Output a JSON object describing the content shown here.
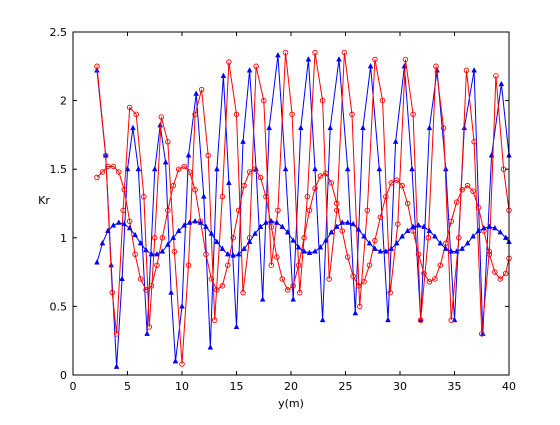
{
  "chart_data": {
    "type": "line",
    "title": "",
    "xlabel": "y(m)",
    "ylabel": "Kr",
    "xlim": [
      0,
      40
    ],
    "ylim": [
      0,
      2.5
    ],
    "xticks": [
      "0",
      "5",
      "10",
      "15",
      "20",
      "25",
      "30",
      "35",
      "40"
    ],
    "yticks": [
      "0",
      "0.5",
      "1",
      "1.5",
      "2",
      "2.5"
    ],
    "grid": false,
    "legend": "none",
    "series": [
      {
        "marker": "triangle",
        "color": "#0000ff",
        "x": [
          2.2,
          3.0,
          3.5,
          4.0,
          4.5,
          5.0,
          5.5,
          6.0,
          6.8,
          7.5,
          8.0,
          8.5,
          9.0,
          9.4,
          10.0,
          10.6,
          11.3,
          12.0,
          12.6,
          13.2,
          13.8,
          14.3,
          15.0,
          15.6,
          16.2,
          16.8,
          17.4,
          18.0,
          18.8,
          19.5,
          20.2,
          20.9,
          21.6,
          22.2,
          22.9,
          23.6,
          24.4,
          25.2,
          25.9,
          26.6,
          27.3,
          28.1,
          28.9,
          29.6,
          30.4,
          31.1,
          31.9,
          32.7,
          33.4,
          34.2,
          35.0,
          35.9,
          36.8,
          37.6,
          38.4,
          39.3,
          40.0
        ],
        "y": [
          2.22,
          1.6,
          0.8,
          0.06,
          0.7,
          1.5,
          1.8,
          1.5,
          0.3,
          1.5,
          1.82,
          1.55,
          0.6,
          0.1,
          0.5,
          1.6,
          2.05,
          1.3,
          0.2,
          1.5,
          2.18,
          1.4,
          0.35,
          1.7,
          2.22,
          1.5,
          0.55,
          1.8,
          2.33,
          1.5,
          0.55,
          1.8,
          2.3,
          1.5,
          0.4,
          1.8,
          2.3,
          1.5,
          0.45,
          1.8,
          2.25,
          1.5,
          0.4,
          1.7,
          2.25,
          1.5,
          0.4,
          1.8,
          2.22,
          1.5,
          0.4,
          1.8,
          2.22,
          0.3,
          1.6,
          2.12,
          1.6
        ]
      },
      {
        "marker": "circle",
        "color": "#ff0000",
        "x": [
          2.2,
          3.0,
          3.6,
          4.0,
          4.6,
          5.2,
          5.8,
          6.5,
          7.0,
          7.5,
          8.1,
          8.7,
          9.3,
          10.0,
          10.6,
          11.2,
          11.8,
          12.4,
          13.0,
          13.7,
          14.3,
          15.0,
          15.6,
          16.2,
          16.8,
          17.5,
          18.2,
          18.8,
          19.5,
          20.1,
          20.8,
          21.5,
          22.2,
          22.9,
          23.5,
          24.2,
          24.9,
          25.6,
          26.3,
          27.0,
          27.7,
          28.4,
          29.1,
          29.8,
          30.5,
          31.2,
          31.9,
          32.6,
          33.3,
          34.0,
          34.7,
          35.4,
          36.1,
          36.8,
          37.5,
          38.2,
          38.8,
          39.5,
          40.0
        ],
        "y": [
          2.25,
          1.6,
          0.6,
          0.3,
          1.2,
          1.95,
          1.9,
          1.3,
          0.35,
          1.0,
          1.88,
          1.7,
          0.9,
          0.08,
          0.8,
          1.9,
          2.08,
          1.6,
          0.4,
          1.3,
          2.28,
          1.9,
          0.6,
          1.0,
          2.25,
          2.0,
          0.8,
          1.2,
          2.35,
          1.9,
          0.6,
          1.3,
          2.35,
          2.0,
          0.7,
          1.2,
          2.35,
          1.9,
          0.5,
          1.2,
          2.3,
          2.0,
          0.6,
          1.1,
          2.3,
          1.9,
          0.4,
          1.0,
          2.25,
          1.8,
          0.4,
          1.0,
          2.22,
          1.7,
          0.3,
          0.9,
          2.18,
          1.5,
          1.2
        ]
      },
      {
        "marker": "circle",
        "color": "#ff0000",
        "x": [
          2.2,
          2.7,
          3.2,
          3.7,
          4.2,
          4.7,
          5.2,
          5.7,
          6.2,
          6.7,
          7.2,
          7.7,
          8.2,
          8.7,
          9.2,
          9.7,
          10.2,
          10.7,
          11.2,
          11.7,
          12.2,
          12.7,
          13.2,
          13.7,
          14.2,
          14.7,
          15.2,
          15.7,
          16.2,
          16.7,
          17.2,
          17.7,
          18.2,
          18.7,
          19.2,
          19.7,
          20.2,
          20.7,
          21.2,
          21.7,
          22.2,
          22.7,
          23.2,
          23.7,
          24.2,
          24.7,
          25.2,
          25.7,
          26.2,
          26.7,
          27.2,
          27.7,
          28.2,
          28.7,
          29.2,
          29.7,
          30.2,
          30.7,
          31.2,
          31.7,
          32.2,
          32.7,
          33.2,
          33.7,
          34.2,
          34.7,
          35.2,
          35.7,
          36.2,
          36.7,
          37.2,
          37.7,
          38.2,
          38.7,
          39.2,
          39.7,
          40.0
        ],
        "y": [
          1.44,
          1.48,
          1.52,
          1.52,
          1.48,
          1.35,
          1.12,
          0.88,
          0.7,
          0.62,
          0.65,
          0.8,
          1.0,
          1.2,
          1.38,
          1.5,
          1.52,
          1.48,
          1.35,
          1.12,
          0.88,
          0.7,
          0.62,
          0.65,
          0.8,
          1.0,
          1.2,
          1.38,
          1.48,
          1.5,
          1.44,
          1.3,
          1.08,
          0.86,
          0.7,
          0.62,
          0.65,
          0.8,
          1.0,
          1.2,
          1.36,
          1.45,
          1.47,
          1.4,
          1.25,
          1.05,
          0.86,
          0.72,
          0.65,
          0.68,
          0.8,
          0.98,
          1.15,
          1.3,
          1.4,
          1.42,
          1.38,
          1.25,
          1.05,
          0.88,
          0.74,
          0.68,
          0.7,
          0.8,
          0.96,
          1.12,
          1.26,
          1.35,
          1.38,
          1.34,
          1.22,
          1.05,
          0.88,
          0.75,
          0.7,
          0.74,
          0.85
        ]
      },
      {
        "marker": "triangle",
        "color": "#0000ff",
        "x": [
          2.2,
          2.7,
          3.2,
          3.7,
          4.2,
          4.7,
          5.2,
          5.7,
          6.2,
          6.7,
          7.2,
          7.7,
          8.2,
          8.7,
          9.2,
          9.7,
          10.2,
          10.7,
          11.2,
          11.7,
          12.2,
          12.7,
          13.2,
          13.7,
          14.2,
          14.7,
          15.2,
          15.7,
          16.2,
          16.7,
          17.2,
          17.7,
          18.2,
          18.7,
          19.2,
          19.7,
          20.2,
          20.7,
          21.2,
          21.7,
          22.2,
          22.7,
          23.2,
          23.7,
          24.2,
          24.7,
          25.2,
          25.7,
          26.2,
          26.7,
          27.2,
          27.7,
          28.2,
          28.7,
          29.2,
          29.7,
          30.2,
          30.7,
          31.2,
          31.7,
          32.2,
          32.7,
          33.2,
          33.7,
          34.2,
          34.7,
          35.2,
          35.7,
          36.2,
          36.7,
          37.2,
          37.7,
          38.2,
          38.7,
          39.2,
          39.7,
          40.0
        ],
        "y": [
          0.82,
          0.96,
          1.05,
          1.09,
          1.11,
          1.1,
          1.07,
          1.02,
          0.96,
          0.91,
          0.88,
          0.88,
          0.9,
          0.95,
          1.0,
          1.05,
          1.09,
          1.11,
          1.12,
          1.11,
          1.08,
          1.03,
          0.97,
          0.92,
          0.88,
          0.87,
          0.88,
          0.92,
          0.97,
          1.03,
          1.08,
          1.11,
          1.12,
          1.11,
          1.08,
          1.04,
          0.98,
          0.93,
          0.9,
          0.89,
          0.9,
          0.93,
          0.98,
          1.04,
          1.08,
          1.11,
          1.11,
          1.1,
          1.06,
          1.01,
          0.96,
          0.92,
          0.9,
          0.9,
          0.92,
          0.96,
          1.01,
          1.05,
          1.08,
          1.09,
          1.08,
          1.05,
          1.01,
          0.96,
          0.92,
          0.9,
          0.9,
          0.92,
          0.96,
          1.01,
          1.05,
          1.07,
          1.08,
          1.07,
          1.04,
          1.0,
          0.97
        ]
      }
    ]
  }
}
